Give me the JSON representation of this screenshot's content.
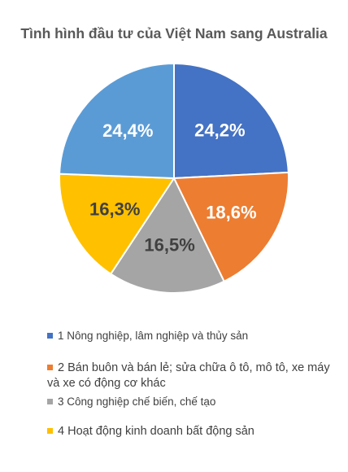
{
  "chart_data": {
    "type": "pie",
    "title": "Tình hình đầu tư của Việt Nam sang Australia",
    "slices": [
      {
        "label": "1 Nông nghiệp, lâm nghiệp và thủy sản",
        "value": 24.2,
        "display": "24,2%",
        "color": "#4472C4"
      },
      {
        "label": "2 Bán buôn và bán lẻ; sửa chữa ô tô, mô tô, xe máy và xe có động cơ khác",
        "value": 18.6,
        "display": "18,6%",
        "color": "#ED7D31"
      },
      {
        "label": "3 Công nghiệp chế biến, chế tạo",
        "value": 16.5,
        "display": "16,5%",
        "color": "#A5A5A5"
      },
      {
        "label": "4 Hoạt động kinh doanh bất động sản",
        "value": 16.3,
        "display": "16,3%",
        "color": "#FFC000"
      },
      {
        "label": "",
        "value": 24.4,
        "display": "24,4%",
        "color": "#5B9BD5"
      }
    ],
    "legend_position": "bottom"
  }
}
